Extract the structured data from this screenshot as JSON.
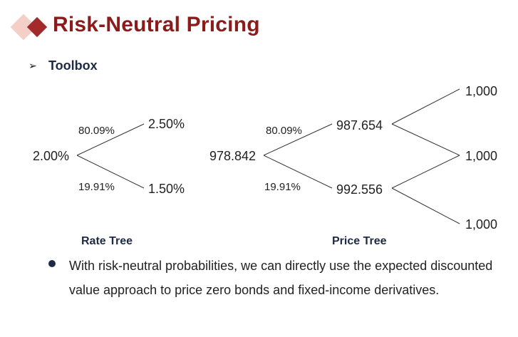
{
  "header": {
    "title": "Risk-Neutral Pricing",
    "subtitle": "Toolbox"
  },
  "rate_tree": {
    "caption": "Rate Tree",
    "root": "2.00%",
    "up": "2.50%",
    "down": "1.50%",
    "p_up": "80.09%",
    "p_down": "19.91%"
  },
  "price_tree": {
    "caption": "Price Tree",
    "root": "978.842",
    "up": "987.654",
    "down": "992.556",
    "p_up": "80.09%",
    "p_down": "19.91%",
    "t2_top": "1,000",
    "t2_mid": "1,000",
    "t2_bot": "1,000"
  },
  "bullet": {
    "text": "With risk-neutral probabilities, we can directly use the expected discounted value approach to price zero bonds and fixed-income derivatives."
  },
  "colors": {
    "title": "#8b1c1c",
    "accent_dark": "#a32a2a",
    "accent_light": "#f4cfc7",
    "navy": "#1f2a44"
  },
  "icons": {
    "title_marker": "diamond-icon",
    "sub_marker": "arrow-right-icon",
    "bullet": "bullet-dot-icon"
  }
}
